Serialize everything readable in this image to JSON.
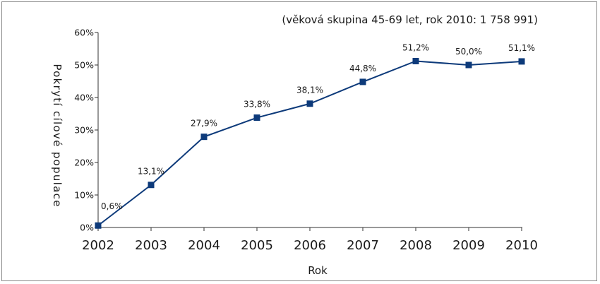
{
  "chart_data": {
    "type": "line",
    "subtitle": "(věková skupina 45-69 let, rok 2010: 1 758 991)",
    "xlabel": "Rok",
    "ylabel": "Pokrytí cílové populace",
    "x": [
      "2002",
      "2003",
      "2004",
      "2005",
      "2006",
      "2007",
      "2008",
      "2009",
      "2010"
    ],
    "series": [
      {
        "values": [
          0.6,
          13.1,
          27.9,
          33.8,
          38.1,
          44.8,
          51.2,
          50.0,
          51.1
        ],
        "labels": [
          "0,6%",
          "13,1%",
          "27,9%",
          "33,8%",
          "38,1%",
          "44,8%",
          "51,2%",
          "50,0%",
          "51,1%"
        ],
        "color": "#0d3a7a",
        "marker": "square"
      }
    ],
    "ylim": [
      0,
      60
    ],
    "yticks": [
      "0%",
      "10%",
      "20%",
      "30%",
      "40%",
      "50%",
      "60%"
    ],
    "grid": false,
    "legend": "none"
  }
}
